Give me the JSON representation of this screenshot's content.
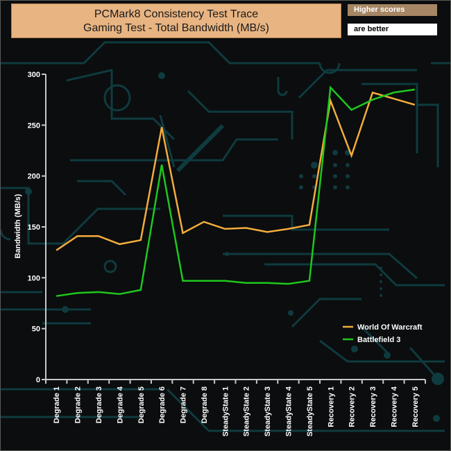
{
  "title": {
    "line1": "PCMark8 Consistency Test Trace",
    "line2": "Gaming Test - Total Bandwidth (MB/s)"
  },
  "badge": {
    "top": "Higher scores",
    "bottom": "are better"
  },
  "colors": {
    "world_of_warcraft": "#f4ad3c",
    "battlefield_3": "#1ec81e",
    "axis": "#c8c8c8",
    "circuit": "#0f3b3f"
  },
  "chart_data": {
    "type": "line",
    "ylabel": "Bandwidth (MB/s)",
    "ylim": [
      0,
      300
    ],
    "yticks": [
      0,
      50,
      100,
      150,
      200,
      250,
      300
    ],
    "grid": false,
    "legend_position": "bottom-right",
    "categories": [
      "Degrade 1",
      "Degrade 2",
      "Degrade 3",
      "Degrade 4",
      "Degrade 5",
      "Degrade 6",
      "Degrade 7",
      "Degrade 8",
      "SteadyState 1",
      "SteadyState 2",
      "SteadyState 3",
      "SteadyState 4",
      "SteadyState 5",
      "Recovery 1",
      "Recovery 2",
      "Recovery 3",
      "Recovery 4",
      "Recovery 5"
    ],
    "series": [
      {
        "name": "World Of Warcraft",
        "values": [
          127,
          141,
          141,
          133,
          137,
          248,
          144,
          155,
          148,
          149,
          145,
          148,
          152,
          274,
          220,
          282,
          276,
          270
        ]
      },
      {
        "name": "Battlefield 3",
        "values": [
          82,
          85,
          86,
          84,
          88,
          211,
          97,
          97,
          97,
          95,
          95,
          94,
          97,
          287,
          265,
          275,
          282,
          285
        ]
      }
    ]
  }
}
